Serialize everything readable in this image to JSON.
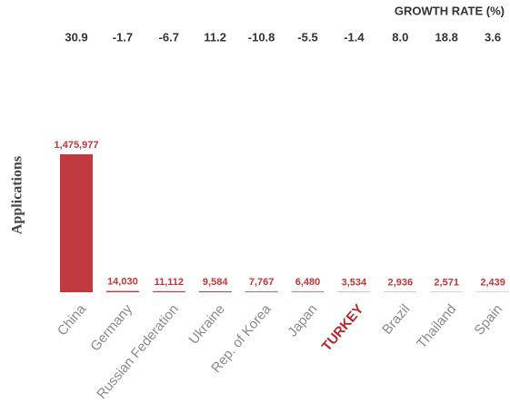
{
  "chart_data": {
    "type": "bar",
    "y_label": "Applications",
    "growth_title": "GROWTH RATE (%)",
    "growth_labels": [
      "30.9",
      "-1.7",
      "-6.7",
      "11.2",
      "-10.8",
      "-5.5",
      "-1.4",
      "8.0",
      "18.8",
      "3.6"
    ],
    "categories": [
      "China",
      "Germany",
      "Russian Federation",
      "Ukraine",
      "Rep. of Korea",
      "Japan",
      "TURKEY",
      "Brazil",
      "Thailand",
      "Spain"
    ],
    "category_colors": [
      "#8a8a8a",
      "#8a8a8a",
      "#8a8a8a",
      "#8a8a8a",
      "#8a8a8a",
      "#8a8a8a",
      "#b5262d",
      "#8a8a8a",
      "#8a8a8a",
      "#8a8a8a"
    ],
    "values": [
      1475977,
      14030,
      11112,
      9584,
      7767,
      6480,
      3534,
      2936,
      2571,
      2439
    ],
    "value_labels": [
      "1,475,977",
      "14,030",
      "11,112",
      "9,584",
      "7,767",
      "6,480",
      "3,534",
      "2,936",
      "2,571",
      "2,439"
    ],
    "color": "#c13a3f",
    "cap_color": "#f0a030"
  }
}
